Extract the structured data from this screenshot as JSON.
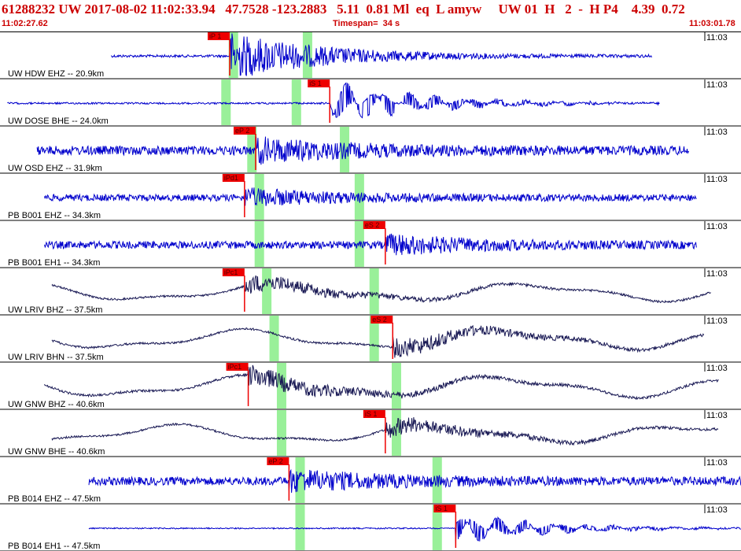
{
  "header": {
    "event_line": "61288232 UW 2017-08-02 11:02:33.94   47.7528 -123.2883   5.11  0.81 Ml  eq  L amyw     UW 01  H   2  -  H P4    4.39  0.72",
    "start_time": "11:02:27.62",
    "timespan": "Timespan=  34 s",
    "end_time": "11:03:01.78"
  },
  "colors": {
    "trace_blue": "#0000cc",
    "trace_dark": "#1a1a55",
    "pick_red": "#ee0000",
    "window_green": "#99f099"
  },
  "channels": [
    {
      "label": "UW HDW EHZ -- 20.9km",
      "tick": "11:03",
      "color": "blue",
      "style": "burst",
      "pick": {
        "label": "iP 1",
        "t": 0.31
      },
      "green": [
        0.315,
        0.415
      ],
      "start": 0.15,
      "end": 0.88,
      "amp": 0.9
    },
    {
      "label": "UW DOSE BHE -- 24.0km",
      "tick": "11:03",
      "color": "blue",
      "style": "quiet",
      "pick": {
        "label": "iS 1",
        "t": 0.445
      },
      "green": [
        0.305,
        0.4
      ],
      "start": 0.01,
      "end": 0.89,
      "amp": 0.5
    },
    {
      "label": "UW OSD EHZ -- 31.9km",
      "tick": "11:03",
      "color": "blue",
      "style": "noisy",
      "pick": {
        "label": "eP 2",
        "t": 0.345
      },
      "green": [
        0.34,
        0.465
      ],
      "start": 0.05,
      "end": 0.93,
      "amp": 0.55
    },
    {
      "label": "PB B001 EHZ -- 34.3km",
      "tick": "11:03",
      "color": "blue",
      "style": "noisy",
      "pick": {
        "label": "iPd1",
        "t": 0.33
      },
      "green": [
        0.35,
        0.485
      ],
      "start": 0.06,
      "end": 0.94,
      "amp": 0.4
    },
    {
      "label": "PB B001 EH1 -- 34.3km",
      "tick": "11:03",
      "color": "blue",
      "style": "noisy",
      "pick": {
        "label": "eS 2",
        "t": 0.52
      },
      "green": [
        0.35,
        0.485
      ],
      "start": 0.06,
      "end": 0.94,
      "amp": 0.45
    },
    {
      "label": "UW LRIV BHZ -- 37.5km",
      "tick": "11:03",
      "color": "dark",
      "style": "wave",
      "pick": {
        "label": "iPc1",
        "t": 0.33
      },
      "green": [
        0.36,
        0.505
      ],
      "start": 0.07,
      "end": 0.96,
      "amp": 0.55
    },
    {
      "label": "UW LRIV BHN -- 37.5km",
      "tick": "11:03",
      "color": "dark",
      "style": "wave",
      "pick": {
        "label": "eS 2",
        "t": 0.53
      },
      "green": [
        0.37,
        0.505
      ],
      "start": 0.07,
      "end": 0.95,
      "amp": 0.6
    },
    {
      "label": "UW GNW BHZ -- 40.6km",
      "tick": "11:03",
      "color": "dark",
      "style": "wave",
      "pick": {
        "label": "iPc1",
        "t": 0.335
      },
      "green": [
        0.38,
        0.535
      ],
      "start": 0.06,
      "end": 0.97,
      "amp": 0.65
    },
    {
      "label": "UW GNW BHE -- 40.6km",
      "tick": "11:03",
      "color": "dark",
      "style": "wave",
      "pick": {
        "label": "iS 1",
        "t": 0.52
      },
      "green": [
        0.38,
        0.535
      ],
      "start": 0.07,
      "end": 0.97,
      "amp": 0.55
    },
    {
      "label": "PB B014 EHZ -- 47.5km",
      "tick": "11:03",
      "color": "blue",
      "style": "noisy",
      "pick": {
        "label": "eP 2",
        "t": 0.39
      },
      "green": [
        0.405,
        0.59
      ],
      "start": 0.12,
      "end": 1.0,
      "amp": 0.5
    },
    {
      "label": "PB B014 EH1 -- 47.5km",
      "tick": "11:03",
      "color": "blue",
      "style": "quiet",
      "pick": {
        "label": "iS 1",
        "t": 0.615
      },
      "green": [
        0.405,
        0.59
      ],
      "start": 0.12,
      "end": 1.0,
      "amp": 0.35
    }
  ]
}
